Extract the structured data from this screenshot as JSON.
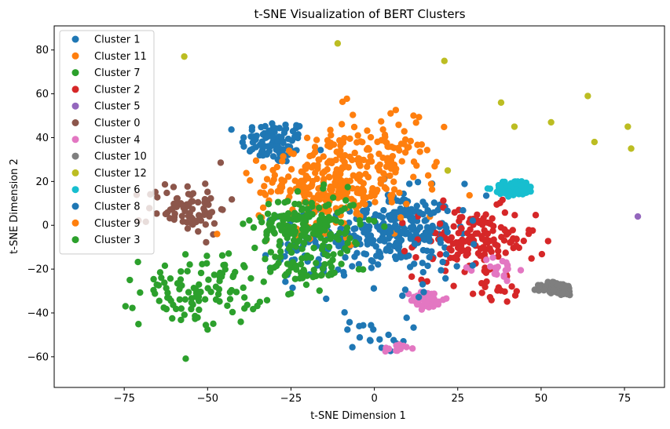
{
  "chart_data": {
    "type": "scatter",
    "title": "t-SNE Visualization of BERT Clusters",
    "xlabel": "t-SNE Dimension 1",
    "ylabel": "t-SNE Dimension 2",
    "xlim": [
      -96,
      87
    ],
    "ylim": [
      -74,
      91
    ],
    "xticks": [
      -75,
      -50,
      -25,
      0,
      25,
      50,
      75
    ],
    "yticks": [
      -60,
      -40,
      -20,
      0,
      20,
      40,
      60,
      80
    ],
    "xtick_labels": [
      "−75",
      "−50",
      "−25",
      "0",
      "25",
      "50",
      "75"
    ],
    "ytick_labels": [
      "−60",
      "−40",
      "−20",
      "0",
      "20",
      "40",
      "60",
      "80"
    ],
    "grid": false,
    "legend_position": "top-left",
    "series": [
      {
        "name": "Cluster 1",
        "color": "#1f77b4",
        "clusters": [
          {
            "cx": -30,
            "cy": 38,
            "sx": 5,
            "sy": 5,
            "n": 90
          },
          {
            "cx": 5,
            "cy": -2,
            "sx": 9,
            "sy": 9,
            "n": 200
          },
          {
            "cx": -20,
            "cy": -10,
            "sx": 6,
            "sy": 8,
            "n": 50
          },
          {
            "cx": 0,
            "cy": -50,
            "sx": 5,
            "sy": 4,
            "n": 20
          }
        ]
      },
      {
        "name": "Cluster 11",
        "color": "#ff7f0e",
        "clusters": [
          {
            "cx": -5,
            "cy": 25,
            "sx": 12,
            "sy": 10,
            "n": 150
          },
          {
            "cx": 5,
            "cy": 40,
            "sx": 8,
            "sy": 10,
            "n": 30
          }
        ]
      },
      {
        "name": "Cluster 7",
        "color": "#2ca02c",
        "clusters": [
          {
            "cx": -52,
            "cy": -30,
            "sx": 9,
            "sy": 8,
            "n": 110
          }
        ]
      },
      {
        "name": "Cluster 2",
        "color": "#d62728",
        "clusters": [
          {
            "cx": 30,
            "cy": -8,
            "sx": 9,
            "sy": 8,
            "n": 150
          },
          {
            "cx": 36,
            "cy": -30,
            "sx": 3,
            "sy": 3,
            "n": 15
          }
        ]
      },
      {
        "name": "Cluster 5",
        "color": "#9467bd",
        "points": [
          [
            79,
            4
          ]
        ]
      },
      {
        "name": "Cluster 0",
        "color": "#8c564b",
        "clusters": [
          {
            "cx": -56,
            "cy": 8,
            "sx": 6,
            "sy": 6,
            "n": 80
          }
        ]
      },
      {
        "name": "Cluster 4",
        "color": "#e377c2",
        "clusters": [
          {
            "cx": 16,
            "cy": -34,
            "sx": 2.5,
            "sy": 2,
            "n": 50
          },
          {
            "cx": 7,
            "cy": -56,
            "sx": 2,
            "sy": 1,
            "n": 15
          },
          {
            "cx": 37,
            "cy": -20,
            "sx": 3,
            "sy": 3,
            "n": 20
          }
        ]
      },
      {
        "name": "Cluster 10",
        "color": "#7f7f7f",
        "clusters": [
          {
            "cx": 55,
            "cy": -29,
            "sx": 2.5,
            "sy": 1.5,
            "n": 80
          }
        ]
      },
      {
        "name": "Cluster 12",
        "color": "#bcbd22",
        "points": [
          [
            -57,
            77
          ],
          [
            -11,
            83
          ],
          [
            21,
            75
          ],
          [
            38,
            56
          ],
          [
            42,
            45
          ],
          [
            53,
            47
          ],
          [
            64,
            59
          ],
          [
            66,
            38
          ],
          [
            76,
            45
          ],
          [
            77,
            35
          ],
          [
            22,
            25
          ]
        ]
      },
      {
        "name": "Cluster 6",
        "color": "#17becf",
        "clusters": [
          {
            "cx": 42,
            "cy": 17,
            "sx": 3,
            "sy": 1.8,
            "n": 90
          }
        ]
      },
      {
        "name": "Cluster 8",
        "color": "#1f77b4",
        "clusters": [
          {
            "cx": 10,
            "cy": -5,
            "sx": 12,
            "sy": 12,
            "n": 80
          }
        ]
      },
      {
        "name": "Cluster 9",
        "color": "#ff7f0e",
        "clusters": [
          {
            "cx": -15,
            "cy": 15,
            "sx": 10,
            "sy": 9,
            "n": 200
          }
        ]
      },
      {
        "name": "Cluster 3",
        "color": "#2ca02c",
        "clusters": [
          {
            "cx": -20,
            "cy": 0,
            "sx": 8,
            "sy": 7,
            "n": 180
          },
          {
            "cx": -20,
            "cy": -20,
            "sx": 6,
            "sy": 4,
            "n": 50
          }
        ]
      }
    ]
  }
}
